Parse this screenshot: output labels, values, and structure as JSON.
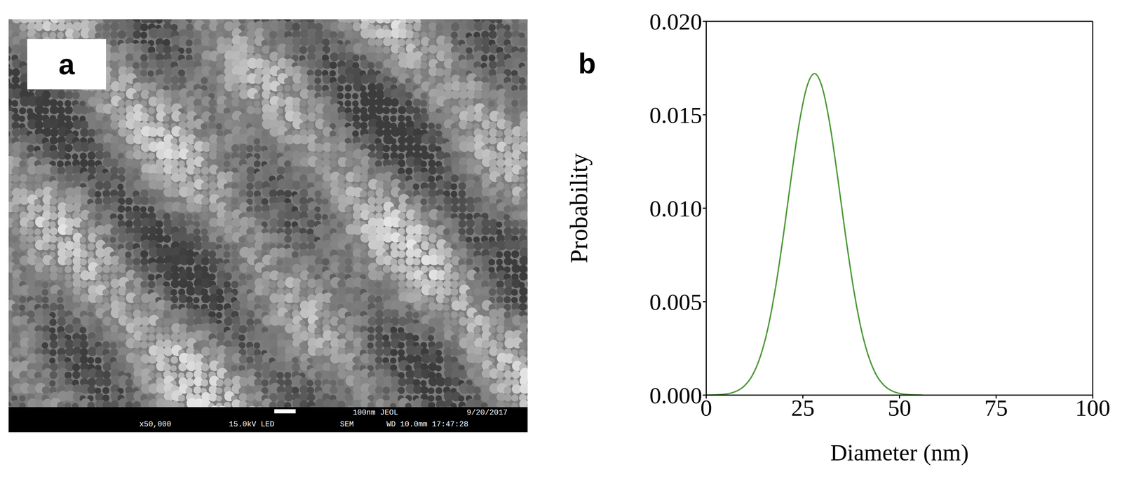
{
  "image_panel": {
    "panel_label": "a",
    "footer_rows": [
      [
        "100nm JEOL",
        "9/20/2017"
      ],
      [
        "x50,000",
        "15.0kV LED",
        "SEM",
        "WD 10.0mm 17:47:28"
      ]
    ]
  },
  "chart_data": {
    "type": "line",
    "panel_label": "b",
    "x_label": "Diameter (nm)",
    "y_label": "Probability",
    "color": "#4f9a3a",
    "grid": false,
    "x": [
      0,
      4,
      8,
      10,
      12,
      14,
      16,
      18,
      20,
      22,
      24,
      26,
      28,
      30,
      32,
      34,
      36,
      38,
      40,
      42,
      44,
      46,
      48,
      52,
      56
    ],
    "values": [
      0,
      3e-05,
      0.00023,
      0.00052,
      0.00108,
      0.00207,
      0.00362,
      0.00584,
      0.00861,
      0.01166,
      0.01447,
      0.01647,
      0.0172,
      0.01647,
      0.01447,
      0.01166,
      0.00861,
      0.00584,
      0.00362,
      0.00207,
      0.00108,
      0.00052,
      0.00023,
      3e-05,
      0
    ],
    "xlim": [
      0,
      100
    ],
    "xticks": [
      0,
      25,
      50,
      75,
      100
    ],
    "ylim": [
      0,
      0.02
    ],
    "yticks": [
      {
        "value": 0,
        "label": "0.000"
      },
      0.005,
      {
        "value": 0.01,
        "label": "0.010"
      },
      0.015,
      {
        "value": 0.02,
        "label": "0.020"
      }
    ]
  }
}
